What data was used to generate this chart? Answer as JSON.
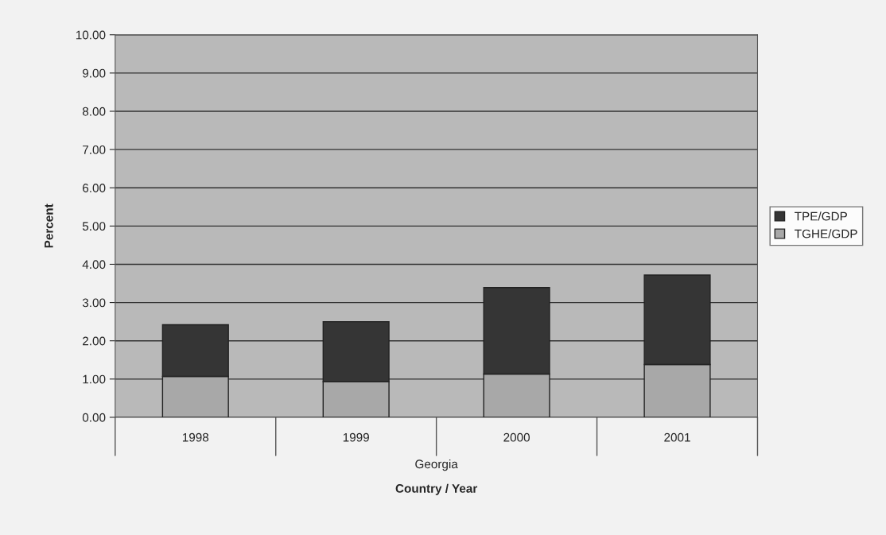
{
  "chart_data": {
    "type": "bar",
    "stacked": true,
    "xlabel": "Country / Year",
    "ylabel": "Percent",
    "categories": [
      "1998",
      "1999",
      "2000",
      "2001"
    ],
    "series": [
      {
        "name": "TGHE/GDP",
        "color": "#a8a8a8",
        "values": [
          1.07,
          0.93,
          1.13,
          1.38
        ]
      },
      {
        "name": "TPE/GDP",
        "color": "#353535",
        "values": [
          1.35,
          1.57,
          2.26,
          2.34
        ]
      }
    ],
    "ylim": [
      0,
      10
    ],
    "yticks": [
      {
        "value": 0,
        "label": "0.00"
      },
      {
        "value": 1,
        "label": "1.00"
      },
      {
        "value": 2,
        "label": "2.00"
      },
      {
        "value": 3,
        "label": "3.00"
      },
      {
        "value": 4,
        "label": "4.00"
      },
      {
        "value": 5,
        "label": "5.00"
      },
      {
        "value": 6,
        "label": "6.00"
      },
      {
        "value": 7,
        "label": "7.00"
      },
      {
        "value": 8,
        "label": "8.00"
      },
      {
        "value": 9,
        "label": "9.00"
      },
      {
        "value": 10,
        "label": "10.00"
      }
    ],
    "grid": "y",
    "legend": "right",
    "annotations": [
      "Georgia"
    ]
  }
}
